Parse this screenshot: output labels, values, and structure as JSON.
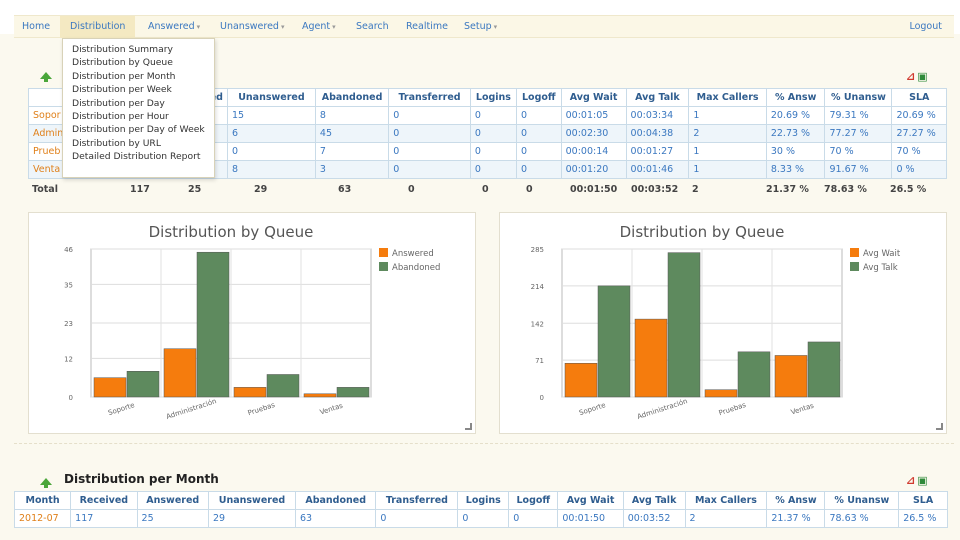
{
  "nav": {
    "items": [
      {
        "label": "Home",
        "dropdown": false
      },
      {
        "label": "Distribution",
        "dropdown": false,
        "active": true
      },
      {
        "label": "Answered",
        "dropdown": true
      },
      {
        "label": "Unanswered",
        "dropdown": true
      },
      {
        "label": "Agent",
        "dropdown": true
      },
      {
        "label": "Search",
        "dropdown": false
      },
      {
        "label": "Realtime",
        "dropdown": false
      },
      {
        "label": "Setup",
        "dropdown": true
      }
    ],
    "logout": "Logout",
    "caret": "▾"
  },
  "dropdown": {
    "items": [
      "Distribution Summary",
      "Distribution by Queue",
      "Distribution per Month",
      "Distribution per Week",
      "Distribution per Day",
      "Distribution per Hour",
      "Distribution per Day of Week",
      "Distribution by URL",
      "Detailed Distribution Report"
    ]
  },
  "export": {
    "pdf": "⬛",
    "xls": "⬛"
  },
  "queue_table": {
    "headers": [
      "",
      "wered",
      "Unanswered",
      "Abandoned",
      "Transferred",
      "Logins",
      "Logoff",
      "Avg Wait",
      "Avg Talk",
      "Max Callers",
      "% Answ",
      "% Unansw",
      "SLA"
    ],
    "rows": [
      {
        "queue": "Sopor",
        "answered": "",
        "unanswered": "15",
        "abandoned": "8",
        "transferred": "0",
        "logins": "0",
        "logoff": "0",
        "avg_wait": "00:01:05",
        "avg_talk": "00:03:34",
        "max_callers": "1",
        "pct_answ": "20.69 %",
        "pct_unansw": "79.31 %",
        "sla": "20.69 %"
      },
      {
        "queue": "Admin",
        "answered": "",
        "unanswered": "6",
        "abandoned": "45",
        "transferred": "0",
        "logins": "0",
        "logoff": "0",
        "avg_wait": "00:02:30",
        "avg_talk": "00:04:38",
        "max_callers": "2",
        "pct_answ": "22.73 %",
        "pct_unansw": "77.27 %",
        "sla": "27.27 %"
      },
      {
        "queue": "Prueb",
        "answered": "",
        "unanswered": "0",
        "abandoned": "7",
        "transferred": "0",
        "logins": "0",
        "logoff": "0",
        "avg_wait": "00:00:14",
        "avg_talk": "00:01:27",
        "max_callers": "1",
        "pct_answ": "30 %",
        "pct_unansw": "70 %",
        "sla": "70 %"
      },
      {
        "queue": "Venta",
        "answered": "",
        "unanswered": "8",
        "abandoned": "3",
        "transferred": "0",
        "logins": "0",
        "logoff": "0",
        "avg_wait": "00:01:20",
        "avg_talk": "00:01:46",
        "max_callers": "1",
        "pct_answ": "8.33 %",
        "pct_unansw": "91.67 %",
        "sla": "0 %"
      }
    ],
    "total": {
      "label": "Total",
      "received": "117",
      "answered": "25",
      "unanswered": "29",
      "abandoned": "63",
      "transferred": "0",
      "logins": "0",
      "logoff": "0",
      "avg_wait": "00:01:50",
      "avg_talk": "00:03:52",
      "max_callers": "2",
      "pct_answ": "21.37 %",
      "pct_unansw": "78.63 %",
      "sla": "26.5 %"
    }
  },
  "month_panel": {
    "title": "Distribution per Month",
    "headers": [
      "Month",
      "Received",
      "Answered",
      "Unanswered",
      "Abandoned",
      "Transferred",
      "Logins",
      "Logoff",
      "Avg Wait",
      "Avg Talk",
      "Max Callers",
      "% Answ",
      "% Unansw",
      "SLA"
    ],
    "rows": [
      [
        "2012-07",
        "117",
        "25",
        "29",
        "63",
        "0",
        "0",
        "0",
        "00:01:50",
        "00:03:52",
        "2",
        "21.37 %",
        "78.63 %",
        "26.5 %"
      ]
    ]
  },
  "colors": {
    "series_a": "#f57c0d",
    "series_b": "#5e8a5e",
    "link": "#3b78c0",
    "queue_link": "#e0801a"
  },
  "chart_data": [
    {
      "type": "bar",
      "title": "Distribution by Queue",
      "categories": [
        "Soporte",
        "Administración",
        "Pruebas",
        "Ventas"
      ],
      "series": [
        {
          "name": "Answered",
          "values": [
            6,
            15,
            3,
            1
          ]
        },
        {
          "name": "Abandoned",
          "values": [
            8,
            45,
            7,
            3
          ]
        }
      ],
      "yticks": [
        "0",
        "12",
        "23",
        "35",
        "46"
      ],
      "ylim": [
        0,
        46
      ],
      "grid": true,
      "legend": "right"
    },
    {
      "type": "bar",
      "title": "Distribution by Queue",
      "categories": [
        "Soporte",
        "Administración",
        "Pruebas",
        "Ventas"
      ],
      "series": [
        {
          "name": "Avg Wait",
          "values": [
            65,
            150,
            14,
            80
          ]
        },
        {
          "name": "Avg Talk",
          "values": [
            214,
            278,
            87,
            106
          ]
        }
      ],
      "yticks": [
        "0",
        "71",
        "142",
        "214",
        "285"
      ],
      "ylim": [
        0,
        285
      ],
      "grid": true,
      "legend": "right"
    }
  ]
}
